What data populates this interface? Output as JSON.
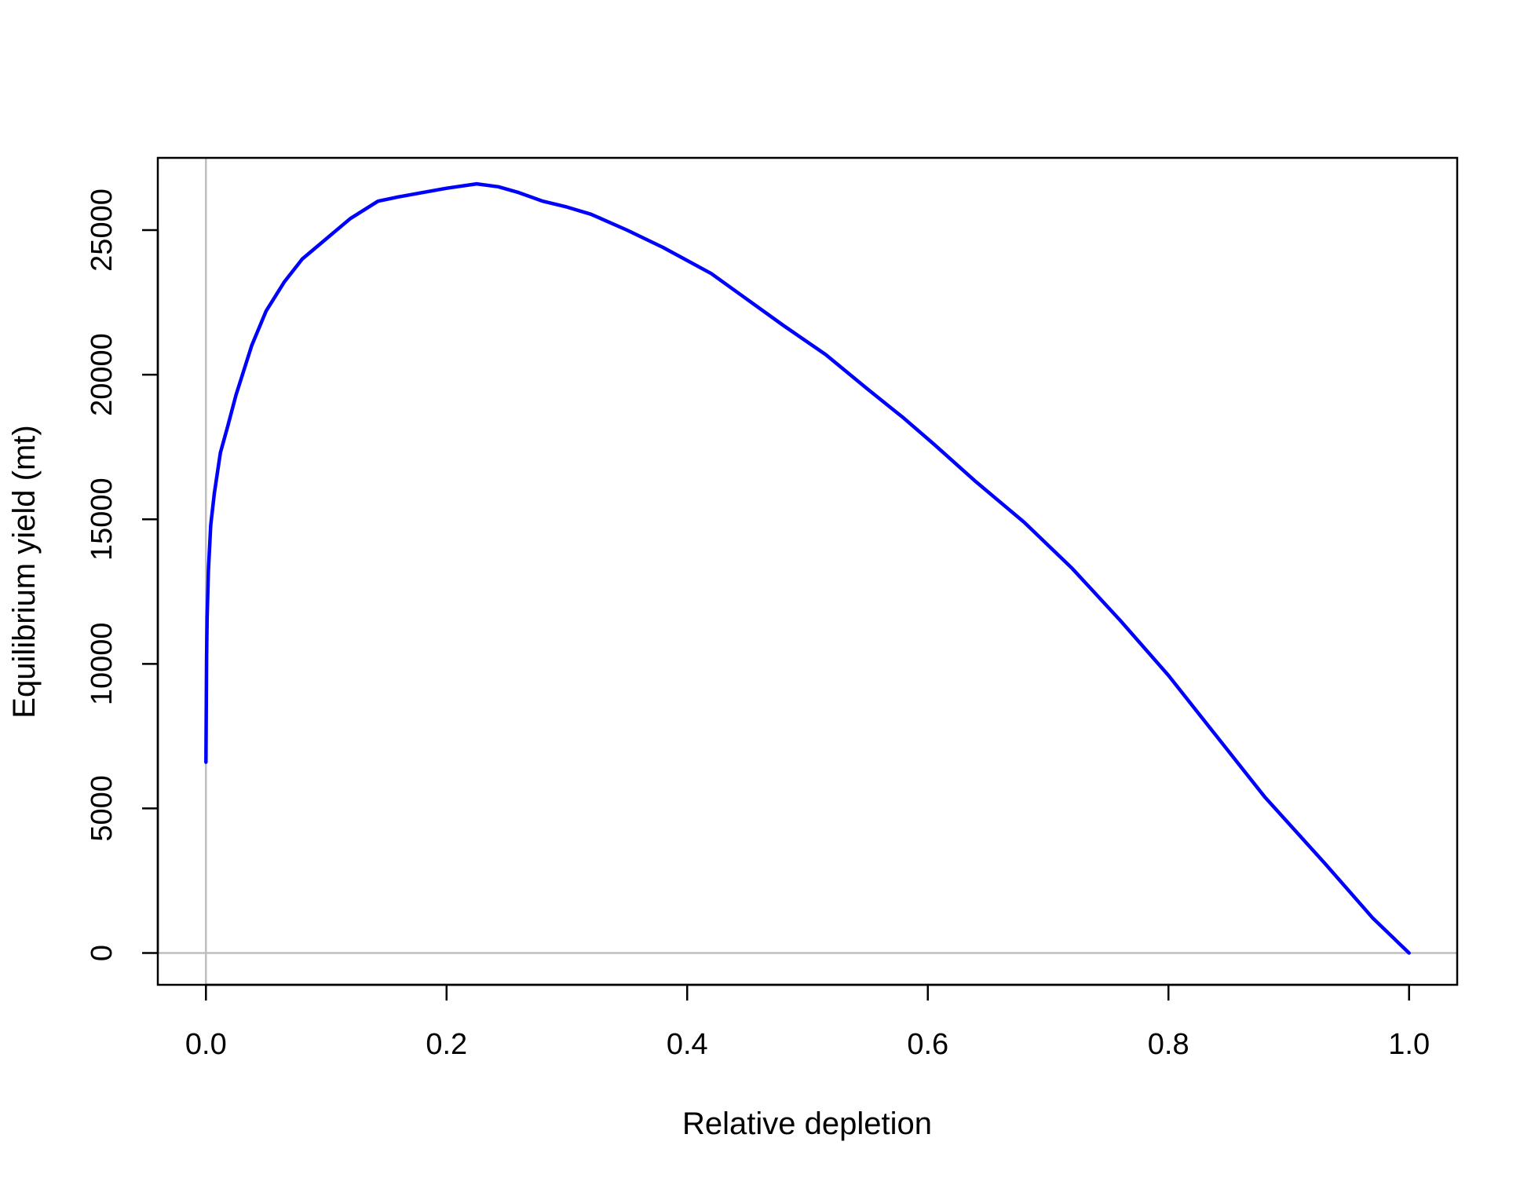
{
  "chart_data": {
    "type": "line",
    "title": "",
    "xlabel": "Relative depletion",
    "ylabel": "Equilibrium yield (mt)",
    "xlim": [
      -0.04,
      1.04
    ],
    "ylim": [
      -1100,
      27500
    ],
    "x_ticks": [
      0.0,
      0.2,
      0.4,
      0.6,
      0.8,
      1.0
    ],
    "x_tick_labels": [
      "0.0",
      "0.2",
      "0.4",
      "0.6",
      "0.8",
      "1.0"
    ],
    "y_ticks": [
      0,
      5000,
      10000,
      15000,
      20000,
      25000
    ],
    "y_tick_labels": [
      "0",
      "5000",
      "10000",
      "15000",
      "20000",
      "25000"
    ],
    "reference_lines": {
      "x": 0,
      "y": 0,
      "color": "#bebebe"
    },
    "grid": false,
    "legend": "none",
    "series": [
      {
        "color": "#0000ff",
        "x": [
          0.0,
          0.0005,
          0.001,
          0.002,
          0.004,
          0.007,
          0.012,
          0.018,
          0.025,
          0.038,
          0.05,
          0.065,
          0.08,
          0.1,
          0.12,
          0.143,
          0.16,
          0.18,
          0.2,
          0.225,
          0.243,
          0.26,
          0.28,
          0.3,
          0.32,
          0.35,
          0.38,
          0.42,
          0.45,
          0.48,
          0.515,
          0.55,
          0.58,
          0.605,
          0.64,
          0.68,
          0.72,
          0.76,
          0.8,
          0.84,
          0.88,
          0.93,
          0.97,
          1.0
        ],
        "y": [
          6600,
          10200,
          11600,
          13200,
          14800,
          15900,
          17300,
          18200,
          19300,
          21000,
          22200,
          23200,
          24000,
          24700,
          25400,
          26000,
          26150,
          26300,
          26450,
          26600,
          26500,
          26300,
          26000,
          25800,
          25550,
          25000,
          24400,
          23500,
          22600,
          21700,
          20700,
          19500,
          18500,
          17600,
          16300,
          14900,
          13300,
          11500,
          9600,
          7500,
          5400,
          3100,
          1200,
          0
        ]
      }
    ]
  }
}
